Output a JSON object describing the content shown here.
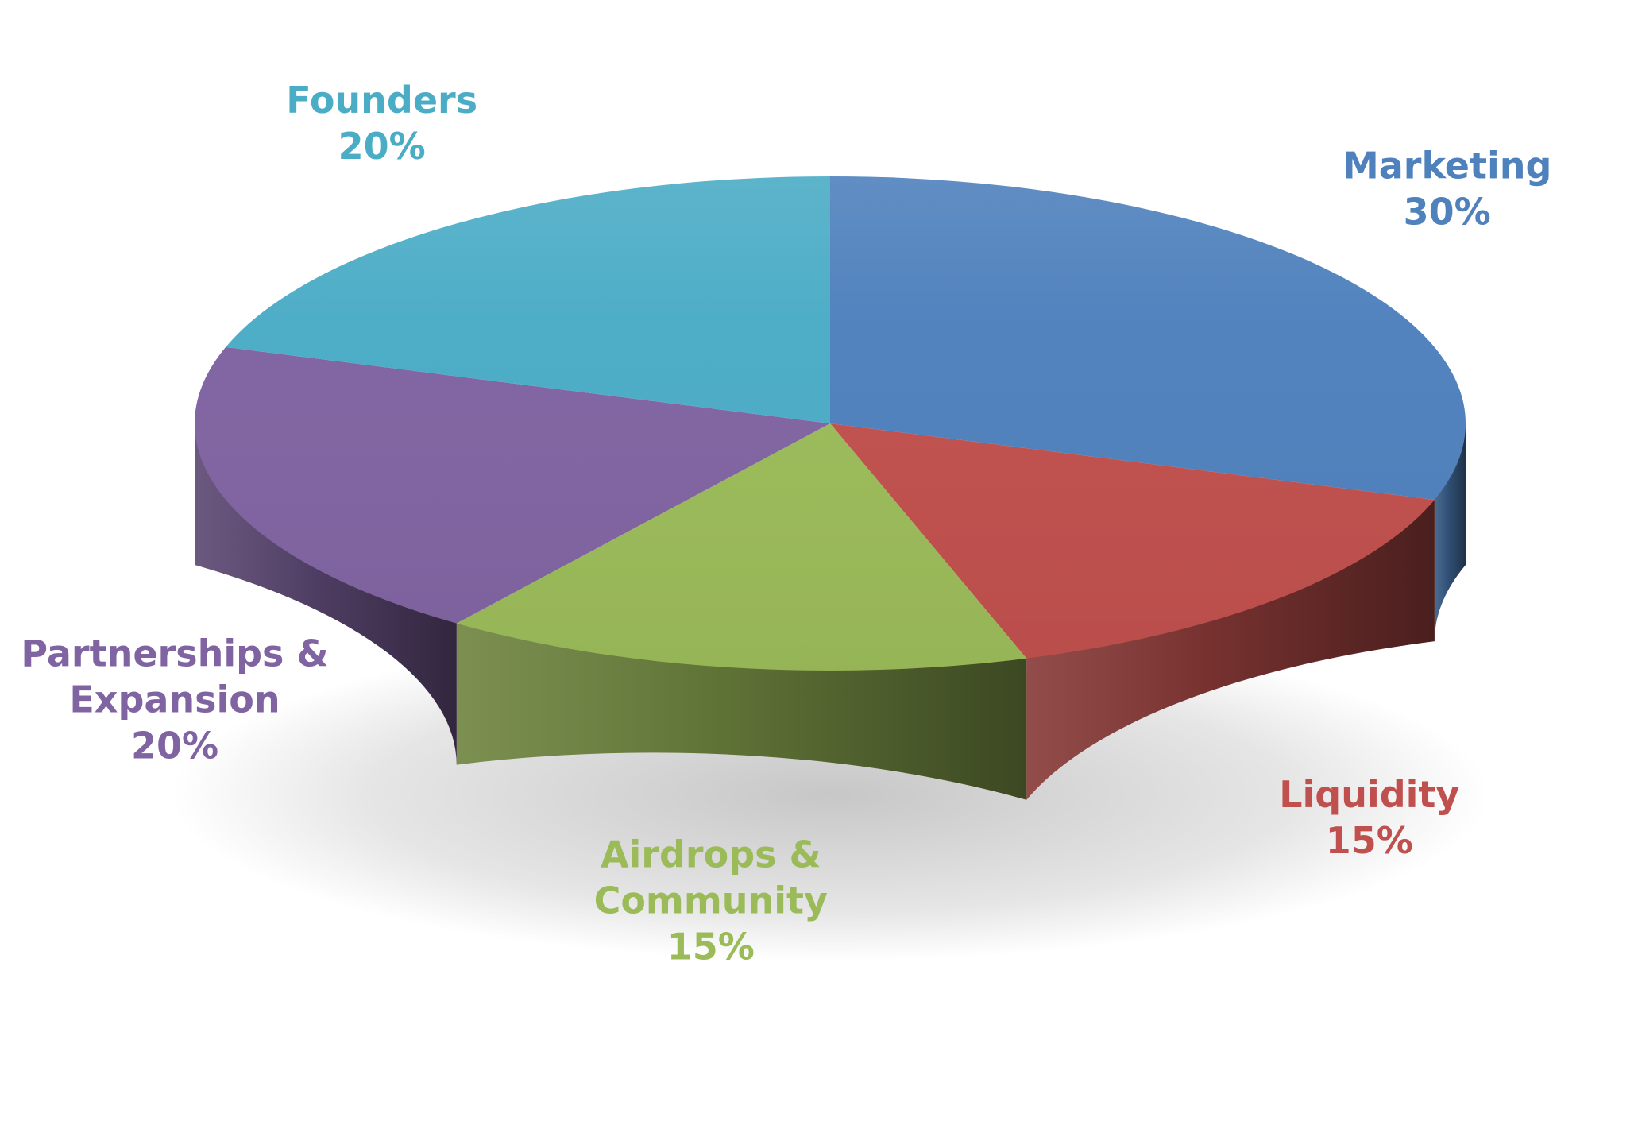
{
  "chart_data": {
    "type": "pie",
    "style": "3d",
    "start_angle_deg": 90,
    "direction": "clockwise",
    "slices": [
      {
        "label_lines": [
          "Marketing"
        ],
        "value_label": "30%",
        "value": 30,
        "color": "#4f81bd"
      },
      {
        "label_lines": [
          "Liquidity"
        ],
        "value_label": "15%",
        "value": 15,
        "color": "#c0504d"
      },
      {
        "label_lines": [
          "Airdrops &",
          "Community"
        ],
        "value_label": "15%",
        "value": 15,
        "color": "#9bbb59"
      },
      {
        "label_lines": [
          "Partnerships &",
          "Expansion"
        ],
        "value_label": "20%",
        "value": 20,
        "color": "#8064a2"
      },
      {
        "label_lines": [
          "Founders"
        ],
        "value_label": "20%",
        "value": 20,
        "color": "#4bacc6"
      }
    ]
  }
}
